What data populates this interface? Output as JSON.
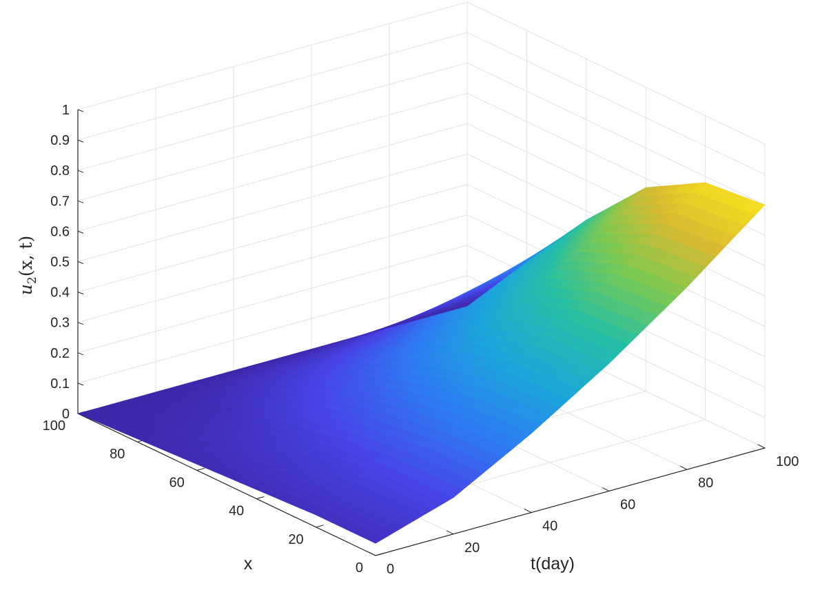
{
  "chart_data": {
    "type": "surface",
    "title": "",
    "xlabel": "t(day)",
    "ylabel": "x",
    "zlabel": {
      "u": "u",
      "sub": "2",
      "args": "(x, t)"
    },
    "t_range": [
      0,
      100
    ],
    "x_range": [
      0,
      100
    ],
    "z_range": [
      0,
      1
    ],
    "t_ticks": [
      "0",
      "20",
      "40",
      "60",
      "80",
      "100"
    ],
    "x_ticks": [
      "0",
      "20",
      "40",
      "60",
      "80",
      "100"
    ],
    "z_ticks": [
      "0",
      "0.1",
      "0.2",
      "0.3",
      "0.4",
      "0.5",
      "0.6",
      "0.7",
      "0.8",
      "0.9",
      "1"
    ],
    "grid": true,
    "colormap": "parula",
    "colormap_stops": [
      "#3e26a8",
      "#4744e7",
      "#2d7cf3",
      "#1ba8d8",
      "#24bfa5",
      "#7cc952",
      "#dbba31",
      "#f9e11e"
    ],
    "surface_samples": {
      "description_of_axes": "u2 values; rows = t, columns = x",
      "t": [
        0,
        20,
        40,
        60,
        80,
        100
      ],
      "x": [
        0,
        20,
        40,
        60,
        80,
        100
      ],
      "u2": [
        [
          0.04,
          0.04,
          0.03,
          0.02,
          0.01,
          0.0
        ],
        [
          0.12,
          0.12,
          0.1,
          0.07,
          0.03,
          0.0
        ],
        [
          0.26,
          0.25,
          0.21,
          0.15,
          0.08,
          0.0
        ],
        [
          0.42,
          0.41,
          0.35,
          0.24,
          0.12,
          0.0
        ],
        [
          0.6,
          0.58,
          0.5,
          0.35,
          0.18,
          0.0
        ],
        [
          0.8,
          0.78,
          0.67,
          0.47,
          0.24,
          0.0
        ]
      ]
    }
  }
}
